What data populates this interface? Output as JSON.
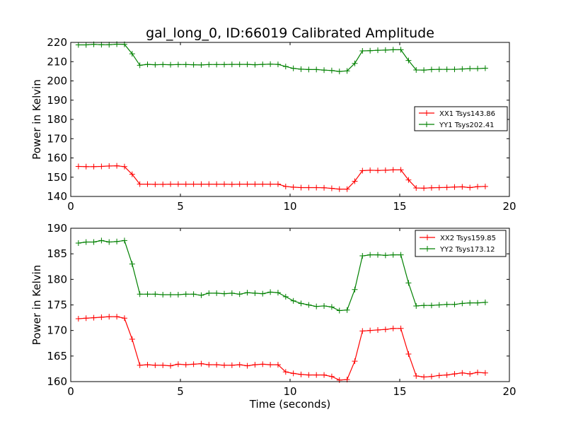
{
  "title": "gal_long_0, ID:66019 Calibrated Amplitude",
  "colors": {
    "red": "#ff0000",
    "green": "#008000"
  },
  "chart_data": [
    {
      "type": "line",
      "ylabel": "Power in Kelvin",
      "xlabel": "",
      "xlim": [
        0,
        20
      ],
      "ylim": [
        140,
        220
      ],
      "xticks": [
        0,
        5,
        10,
        15,
        20
      ],
      "yticks": [
        140,
        150,
        160,
        170,
        180,
        190,
        200,
        210,
        220
      ],
      "grid": false,
      "legend": "center-right",
      "series": [
        {
          "name": "XX1 Tsys143.86",
          "color": "#ff0000",
          "x": [
            0.35,
            0.7,
            1.05,
            1.4,
            1.75,
            2.1,
            2.45,
            2.8,
            3.15,
            3.5,
            3.85,
            4.2,
            4.55,
            4.9,
            5.25,
            5.6,
            5.95,
            6.3,
            6.65,
            7.0,
            7.35,
            7.7,
            8.05,
            8.4,
            8.75,
            9.1,
            9.45,
            9.8,
            10.15,
            10.5,
            10.85,
            11.2,
            11.55,
            11.9,
            12.25,
            12.6,
            12.95,
            13.3,
            13.65,
            14.0,
            14.35,
            14.7,
            15.05,
            15.4,
            15.75,
            16.1,
            16.45,
            16.8,
            17.15,
            17.5,
            17.85,
            18.2,
            18.55,
            18.9
          ],
          "y": [
            155.6,
            155.5,
            155.5,
            155.6,
            155.8,
            155.9,
            155.5,
            151.5,
            146.4,
            146.4,
            146.3,
            146.3,
            146.4,
            146.4,
            146.4,
            146.4,
            146.4,
            146.4,
            146.4,
            146.4,
            146.3,
            146.4,
            146.4,
            146.4,
            146.4,
            146.4,
            146.4,
            145.2,
            144.8,
            144.6,
            144.6,
            144.6,
            144.5,
            144.2,
            143.8,
            143.8,
            147.9,
            153.4,
            153.6,
            153.5,
            153.6,
            153.8,
            153.8,
            148.6,
            144.4,
            144.3,
            144.5,
            144.6,
            144.7,
            144.9,
            145.0,
            144.6,
            145.1,
            145.2
          ]
        },
        {
          "name": "YY1 Tsys202.41",
          "color": "#008000",
          "x": [
            0.35,
            0.7,
            1.05,
            1.4,
            1.75,
            2.1,
            2.45,
            2.8,
            3.15,
            3.5,
            3.85,
            4.2,
            4.55,
            4.9,
            5.25,
            5.6,
            5.95,
            6.3,
            6.65,
            7.0,
            7.35,
            7.7,
            8.05,
            8.4,
            8.75,
            9.1,
            9.45,
            9.8,
            10.15,
            10.5,
            10.85,
            11.2,
            11.55,
            11.9,
            12.25,
            12.6,
            12.95,
            13.3,
            13.65,
            14.0,
            14.35,
            14.7,
            15.05,
            15.4,
            15.75,
            16.1,
            16.45,
            16.8,
            17.15,
            17.5,
            17.85,
            18.2,
            18.55,
            18.9
          ],
          "y": [
            218.7,
            218.7,
            219.0,
            218.8,
            218.8,
            219.1,
            219.0,
            214.1,
            208.1,
            208.6,
            208.4,
            208.5,
            208.4,
            208.5,
            208.5,
            208.4,
            208.3,
            208.5,
            208.5,
            208.5,
            208.6,
            208.6,
            208.6,
            208.4,
            208.6,
            208.7,
            208.6,
            207.5,
            206.5,
            206.1,
            205.9,
            205.9,
            205.6,
            205.4,
            204.9,
            205.2,
            209.1,
            215.6,
            215.7,
            215.9,
            216.0,
            216.2,
            216.2,
            210.6,
            205.7,
            205.6,
            205.9,
            206.0,
            206.0,
            206.0,
            206.2,
            206.4,
            206.4,
            206.6
          ]
        }
      ]
    },
    {
      "type": "line",
      "ylabel": "Power in Kelvin",
      "xlabel": "Time (seconds)",
      "xlim": [
        0,
        20
      ],
      "ylim": [
        160,
        190
      ],
      "xticks": [
        0,
        5,
        10,
        15,
        20
      ],
      "yticks": [
        160,
        165,
        170,
        175,
        180,
        185,
        190
      ],
      "grid": false,
      "legend": "top-right",
      "series": [
        {
          "name": "XX2 Tsys159.85",
          "color": "#ff0000",
          "x": [
            0.35,
            0.7,
            1.05,
            1.4,
            1.75,
            2.1,
            2.45,
            2.8,
            3.15,
            3.5,
            3.85,
            4.2,
            4.55,
            4.9,
            5.25,
            5.6,
            5.95,
            6.3,
            6.65,
            7.0,
            7.35,
            7.7,
            8.05,
            8.4,
            8.75,
            9.1,
            9.45,
            9.8,
            10.15,
            10.5,
            10.85,
            11.2,
            11.55,
            11.9,
            12.25,
            12.6,
            12.95,
            13.3,
            13.65,
            14.0,
            14.35,
            14.7,
            15.05,
            15.4,
            15.75,
            16.1,
            16.45,
            16.8,
            17.15,
            17.5,
            17.85,
            18.2,
            18.55,
            18.9
          ],
          "y": [
            172.3,
            172.4,
            172.5,
            172.6,
            172.7,
            172.7,
            172.4,
            168.3,
            163.2,
            163.3,
            163.2,
            163.2,
            163.1,
            163.4,
            163.3,
            163.4,
            163.5,
            163.3,
            163.3,
            163.2,
            163.2,
            163.3,
            163.1,
            163.3,
            163.4,
            163.3,
            163.3,
            161.9,
            161.6,
            161.4,
            161.3,
            161.3,
            161.3,
            161.0,
            160.3,
            160.4,
            164.0,
            169.9,
            170.0,
            170.1,
            170.2,
            170.4,
            170.4,
            165.4,
            161.1,
            160.9,
            161.0,
            161.2,
            161.3,
            161.5,
            161.7,
            161.5,
            161.8,
            161.7
          ]
        },
        {
          "name": "YY2 Tsys173.12",
          "color": "#008000",
          "x": [
            0.35,
            0.7,
            1.05,
            1.4,
            1.75,
            2.1,
            2.45,
            2.8,
            3.15,
            3.5,
            3.85,
            4.2,
            4.55,
            4.9,
            5.25,
            5.6,
            5.95,
            6.3,
            6.65,
            7.0,
            7.35,
            7.7,
            8.05,
            8.4,
            8.75,
            9.1,
            9.45,
            9.8,
            10.15,
            10.5,
            10.85,
            11.2,
            11.55,
            11.9,
            12.25,
            12.6,
            12.95,
            13.3,
            13.65,
            14.0,
            14.35,
            14.7,
            15.05,
            15.4,
            15.75,
            16.1,
            16.45,
            16.8,
            17.15,
            17.5,
            17.85,
            18.2,
            18.55,
            18.9
          ],
          "y": [
            187.1,
            187.3,
            187.3,
            187.6,
            187.3,
            187.4,
            187.6,
            183.0,
            177.1,
            177.1,
            177.1,
            177.0,
            177.0,
            177.0,
            177.1,
            177.1,
            176.9,
            177.3,
            177.3,
            177.2,
            177.3,
            177.1,
            177.4,
            177.3,
            177.2,
            177.5,
            177.4,
            176.6,
            175.8,
            175.3,
            175.0,
            174.7,
            174.8,
            174.6,
            173.9,
            174.0,
            178.0,
            184.6,
            184.8,
            184.8,
            184.7,
            184.8,
            184.8,
            179.3,
            174.8,
            174.9,
            174.9,
            175.0,
            175.1,
            175.1,
            175.3,
            175.4,
            175.4,
            175.5
          ]
        }
      ]
    }
  ]
}
